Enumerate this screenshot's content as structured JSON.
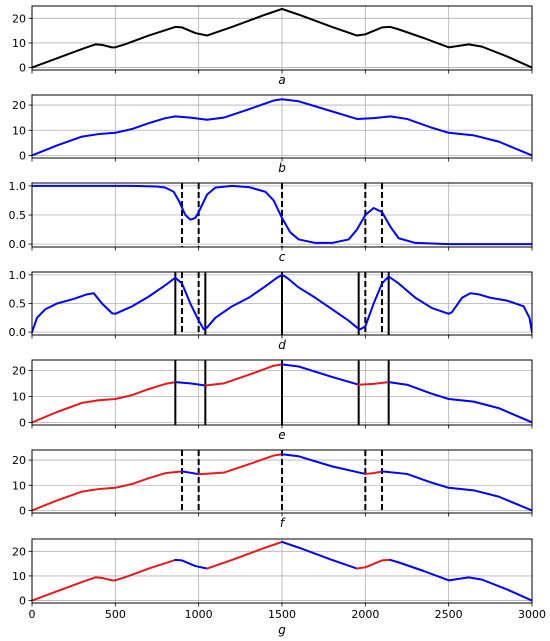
{
  "chart_data": {
    "type": "line",
    "shared_x": {
      "xlim": [
        0,
        3000
      ],
      "ticks": [
        0,
        500,
        1000,
        1500,
        2000,
        2500,
        3000
      ],
      "tick_labels": [
        "0",
        "500",
        "1000",
        "1500",
        "2000",
        "2500",
        "3000"
      ]
    },
    "grid": true,
    "panels": [
      {
        "label": "a",
        "ylim": [
          -1,
          25
        ],
        "yticks": [
          0,
          10,
          20
        ],
        "ytick_labels": [
          "0",
          "10",
          "20"
        ],
        "series": [
          {
            "color": "#000000",
            "x": [
              0,
              200,
              320,
              380,
              420,
              480,
              500,
              560,
              700,
              860,
              900,
              980,
              1050,
              1200,
              1400,
              1500,
              1600,
              1800,
              1950,
              2000,
              2100,
              2150,
              2200,
              2350,
              2500,
              2560,
              2620,
              2700,
              2850,
              3000
            ],
            "y": [
              0,
              5,
              8,
              9.4,
              9.2,
              8.2,
              8.2,
              9.5,
              13,
              16.5,
              16.3,
              14,
              13,
              16.5,
              21.5,
              23.8,
              21.5,
              16.5,
              13,
              13.5,
              16.3,
              16.5,
              15.5,
              12,
              8.2,
              8.8,
              9.4,
              8.5,
              4.5,
              0
            ]
          }
        ]
      },
      {
        "label": "b",
        "ylim": [
          -1,
          24
        ],
        "yticks": [
          0,
          10,
          20
        ],
        "ytick_labels": [
          "0",
          "10",
          "20"
        ],
        "series": [
          {
            "color": "#0000ff",
            "x": [
              0,
              150,
              300,
              400,
              500,
              600,
              700,
              800,
              860,
              950,
              1050,
              1150,
              1300,
              1450,
              1500,
              1600,
              1800,
              1950,
              2050,
              2150,
              2250,
              2400,
              2500,
              2650,
              2800,
              3000
            ],
            "y": [
              0,
              4,
              7.5,
              8.5,
              9,
              10.5,
              12.8,
              14.8,
              15.5,
              15,
              14.2,
              15,
              18.3,
              21.8,
              22.3,
              21.5,
              17.5,
              14.5,
              14.8,
              15.5,
              14.5,
              11,
              9,
              8,
              5.5,
              0
            ]
          }
        ]
      },
      {
        "label": "c",
        "ylim": [
          -0.05,
          1.05
        ],
        "yticks": [
          0.0,
          0.5,
          1.0
        ],
        "ytick_labels": [
          "0.0",
          "0.5",
          "1.0"
        ],
        "vlines": [
          {
            "x": 900,
            "style": "dashed"
          },
          {
            "x": 1000,
            "style": "dashed"
          },
          {
            "x": 1500,
            "style": "dashed"
          },
          {
            "x": 2000,
            "style": "dashed"
          },
          {
            "x": 2100,
            "style": "dashed"
          }
        ],
        "series": [
          {
            "color": "#0000ff",
            "x": [
              0,
              300,
              600,
              750,
              800,
              850,
              880,
              920,
              950,
              980,
              1000,
              1050,
              1100,
              1200,
              1300,
              1400,
              1450,
              1500,
              1550,
              1600,
              1700,
              1800,
              1900,
              1950,
              2000,
              2050,
              2100,
              2150,
              2200,
              2300,
              2500,
              3000
            ],
            "y": [
              1,
              1,
              1,
              0.99,
              0.97,
              0.9,
              0.75,
              0.5,
              0.42,
              0.45,
              0.55,
              0.85,
              0.97,
              1.0,
              0.98,
              0.9,
              0.75,
              0.45,
              0.2,
              0.08,
              0.02,
              0.02,
              0.08,
              0.25,
              0.5,
              0.62,
              0.55,
              0.3,
              0.1,
              0.02,
              0.0,
              0.0
            ]
          }
        ]
      },
      {
        "label": "d",
        "ylim": [
          -0.05,
          1.05
        ],
        "yticks": [
          0.0,
          0.5,
          1.0
        ],
        "ytick_labels": [
          "0.0",
          "0.5",
          "1.0"
        ],
        "vlines": [
          {
            "x": 860,
            "style": "solid"
          },
          {
            "x": 900,
            "style": "dashed"
          },
          {
            "x": 1000,
            "style": "dashed"
          },
          {
            "x": 1040,
            "style": "solid"
          },
          {
            "x": 1500,
            "style": "solid"
          },
          {
            "x": 1960,
            "style": "solid"
          },
          {
            "x": 2000,
            "style": "dashed"
          },
          {
            "x": 2100,
            "style": "dashed"
          },
          {
            "x": 2140,
            "style": "solid"
          }
        ],
        "series": [
          {
            "color": "#0000ff",
            "x": [
              0,
              30,
              80,
              150,
              250,
              330,
              370,
              420,
              480,
              500,
              600,
              700,
              800,
              860,
              900,
              950,
              1000,
              1030,
              1050,
              1100,
              1200,
              1300,
              1400,
              1470,
              1500,
              1530,
              1600,
              1700,
              1800,
              1900,
              1950,
              1970,
              2000,
              2050,
              2100,
              2140,
              2200,
              2300,
              2400,
              2500,
              2520,
              2580,
              2630,
              2680,
              2750,
              2850,
              2950,
              2985,
              3000
            ],
            "y": [
              0,
              0.25,
              0.4,
              0.5,
              0.58,
              0.66,
              0.68,
              0.5,
              0.33,
              0.32,
              0.45,
              0.62,
              0.82,
              0.95,
              0.85,
              0.5,
              0.2,
              0.05,
              0.08,
              0.25,
              0.45,
              0.6,
              0.8,
              0.95,
              1.0,
              0.95,
              0.78,
              0.6,
              0.4,
              0.2,
              0.08,
              0.05,
              0.1,
              0.5,
              0.85,
              0.97,
              0.85,
              0.6,
              0.42,
              0.32,
              0.35,
              0.6,
              0.68,
              0.66,
              0.6,
              0.55,
              0.45,
              0.25,
              0
            ]
          }
        ]
      },
      {
        "label": "e",
        "ylim": [
          -1,
          24
        ],
        "yticks": [
          0,
          10,
          20
        ],
        "ytick_labels": [
          "0",
          "10",
          "20"
        ],
        "vlines": [
          {
            "x": 860,
            "style": "solid"
          },
          {
            "x": 1040,
            "style": "solid"
          },
          {
            "x": 1500,
            "style": "solid"
          },
          {
            "x": 1960,
            "style": "solid"
          },
          {
            "x": 2140,
            "style": "solid"
          }
        ],
        "series": [
          {
            "color": "#e41a1c",
            "x": [
              0,
              150,
              300,
              400,
              500,
              600,
              700,
              800,
              860
            ],
            "y": [
              0,
              4,
              7.5,
              8.5,
              9,
              10.5,
              12.8,
              14.8,
              15.5
            ]
          },
          {
            "color": "#0000ff",
            "x": [
              860,
              950,
              1040
            ],
            "y": [
              15.5,
              15,
              14.2
            ]
          },
          {
            "color": "#e41a1c",
            "x": [
              1040,
              1150,
              1300,
              1450,
              1500
            ],
            "y": [
              14.2,
              15,
              18.3,
              21.8,
              22.3
            ]
          },
          {
            "color": "#0000ff",
            "x": [
              1500,
              1600,
              1800,
              1960
            ],
            "y": [
              22.3,
              21.5,
              17.5,
              14.5
            ]
          },
          {
            "color": "#e41a1c",
            "x": [
              1960,
              2050,
              2140
            ],
            "y": [
              14.5,
              14.8,
              15.5
            ]
          },
          {
            "color": "#0000ff",
            "x": [
              2140,
              2250,
              2400,
              2500,
              2650,
              2800,
              3000
            ],
            "y": [
              15.5,
              14.5,
              11,
              9,
              8,
              5.5,
              0
            ]
          }
        ]
      },
      {
        "label": "f",
        "ylim": [
          -1,
          24
        ],
        "yticks": [
          0,
          10,
          20
        ],
        "ytick_labels": [
          "0",
          "10",
          "20"
        ],
        "vlines": [
          {
            "x": 900,
            "style": "dashed"
          },
          {
            "x": 1000,
            "style": "dashed"
          },
          {
            "x": 1500,
            "style": "dashed"
          },
          {
            "x": 2000,
            "style": "dashed"
          },
          {
            "x": 2100,
            "style": "dashed"
          }
        ],
        "series": [
          {
            "color": "#e41a1c",
            "x": [
              0,
              150,
              300,
              400,
              500,
              600,
              700,
              800,
              900
            ],
            "y": [
              0,
              4,
              7.5,
              8.5,
              9,
              10.5,
              12.8,
              14.8,
              15.5
            ]
          },
          {
            "color": "#0000ff",
            "x": [
              900,
              950,
              1000
            ],
            "y": [
              15.5,
              15,
              14.4
            ]
          },
          {
            "color": "#e41a1c",
            "x": [
              1000,
              1150,
              1300,
              1450,
              1500
            ],
            "y": [
              14.4,
              15,
              18.3,
              21.8,
              22.3
            ]
          },
          {
            "color": "#0000ff",
            "x": [
              1500,
              1600,
              1800,
              2000
            ],
            "y": [
              22.3,
              21.5,
              17.5,
              14.5
            ]
          },
          {
            "color": "#e41a1c",
            "x": [
              2000,
              2050,
              2100
            ],
            "y": [
              14.5,
              14.8,
              15.5
            ]
          },
          {
            "color": "#0000ff",
            "x": [
              2100,
              2250,
              2400,
              2500,
              2650,
              2800,
              3000
            ],
            "y": [
              15.5,
              14.5,
              11,
              9,
              8,
              5.5,
              0
            ]
          }
        ]
      },
      {
        "label": "g",
        "ylim": [
          -1,
          25
        ],
        "yticks": [
          0,
          10,
          20
        ],
        "ytick_labels": [
          "0",
          "10",
          "20"
        ],
        "series": [
          {
            "color": "#e41a1c",
            "x": [
              0,
              200,
              320,
              380,
              420,
              480,
              500,
              560,
              700,
              860
            ],
            "y": [
              0,
              5,
              8,
              9.4,
              9.2,
              8.2,
              8.2,
              9.5,
              13,
              16.5
            ]
          },
          {
            "color": "#0000ff",
            "x": [
              860,
              900,
              980,
              1050
            ],
            "y": [
              16.5,
              16.3,
              14,
              13
            ]
          },
          {
            "color": "#e41a1c",
            "x": [
              1050,
              1200,
              1400,
              1500
            ],
            "y": [
              13,
              16.5,
              21.5,
              23.8
            ]
          },
          {
            "color": "#0000ff",
            "x": [
              1500,
              1600,
              1800,
              1950
            ],
            "y": [
              23.8,
              21.5,
              16.5,
              13
            ]
          },
          {
            "color": "#e41a1c",
            "x": [
              1950,
              2000,
              2100,
              2150
            ],
            "y": [
              13,
              13.5,
              16.3,
              16.5
            ]
          },
          {
            "color": "#0000ff",
            "x": [
              2150,
              2200,
              2350,
              2500,
              2560,
              2620,
              2700,
              2850,
              3000
            ],
            "y": [
              16.5,
              15.5,
              12,
              8.2,
              8.8,
              9.4,
              8.5,
              4.5,
              0
            ]
          }
        ]
      }
    ]
  }
}
